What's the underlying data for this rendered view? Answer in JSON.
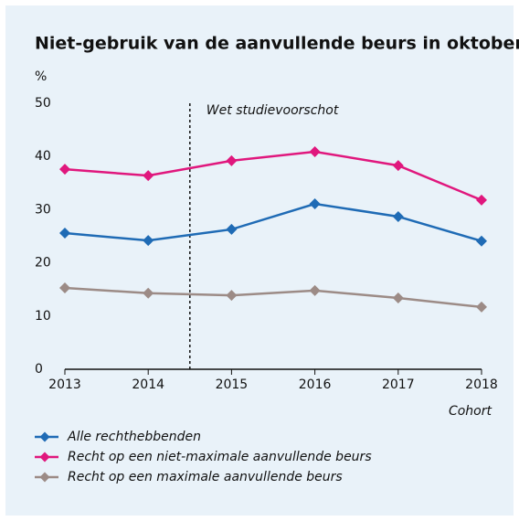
{
  "chart_data": {
    "type": "line",
    "title": "Niet-gebruik van de aanvullende beurs in oktober",
    "y_label": "%",
    "x_label": "Cohort",
    "x": [
      2013,
      2014,
      2015,
      2016,
      2017,
      2018
    ],
    "xlim": [
      2013,
      2018
    ],
    "xticks": [
      2013,
      2014,
      2015,
      2016,
      2017,
      2018
    ],
    "ylim": [
      0,
      50
    ],
    "yticks": [
      0,
      10,
      20,
      30,
      40,
      50
    ],
    "annotations": [
      {
        "x": 2014.5,
        "text": "Wet studievoorschot"
      }
    ],
    "series": [
      {
        "name": "Alle rechthebbenden",
        "color": "#1f6bb5",
        "values": [
          25.6,
          24.2,
          26.3,
          31.1,
          28.7,
          24.1
        ]
      },
      {
        "name": "Recht op een niet-maximale aanvullende beurs",
        "color": "#e0177d",
        "values": [
          37.6,
          36.4,
          39.2,
          40.9,
          38.3,
          31.8
        ]
      },
      {
        "name": "Recht op een maximale aanvullende beurs",
        "color": "#9c8b86",
        "values": [
          15.3,
          14.3,
          13.9,
          14.8,
          13.4,
          11.7
        ]
      }
    ]
  }
}
